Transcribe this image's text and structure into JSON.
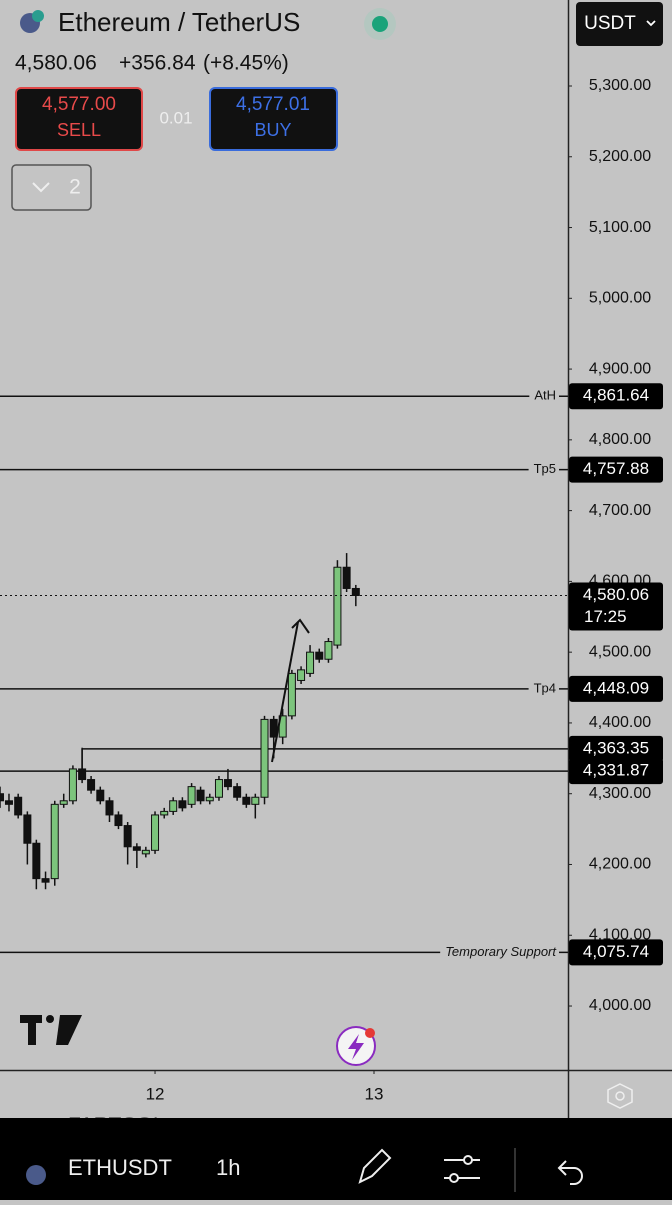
{
  "header": {
    "title": "Ethereum / TetherUS",
    "price": "4,580.06",
    "change": "+356.84",
    "change_pct": "(+8.45%)",
    "sell": {
      "price": "4,577.00",
      "label": "SELL"
    },
    "quantity": "0.01",
    "buy": {
      "price": "4,577.01",
      "label": "BUY"
    },
    "collapsed_count": "2",
    "currency": "USDT"
  },
  "chart_data": {
    "type": "candlestick",
    "x": [
      11.292,
      11.333,
      11.375,
      11.417,
      11.458,
      11.5,
      11.542,
      11.583,
      11.625,
      11.667,
      11.708,
      11.75,
      11.792,
      11.833,
      11.875,
      11.917,
      11.958,
      12.0,
      12.042,
      12.083,
      12.125,
      12.167,
      12.208,
      12.25,
      12.292,
      12.333,
      12.375,
      12.417,
      12.458,
      12.5,
      12.542,
      12.583,
      12.625,
      12.667,
      12.708,
      12.75,
      12.792,
      12.833,
      12.875,
      12.917
    ],
    "open": [
      4300,
      4290,
      4295,
      4270,
      4230,
      4180,
      4180,
      4285,
      4290,
      4335,
      4320,
      4305,
      4290,
      4270,
      4255,
      4225,
      4215,
      4220,
      4270,
      4275,
      4290,
      4285,
      4305,
      4290,
      4295,
      4320,
      4310,
      4295,
      4285,
      4295,
      4405,
      4380,
      4410,
      4460,
      4470,
      4500,
      4490,
      4510,
      4620,
      4590
    ],
    "high": [
      4310,
      4300,
      4300,
      4275,
      4235,
      4190,
      4290,
      4300,
      4340,
      4365,
      4325,
      4310,
      4295,
      4275,
      4260,
      4230,
      4225,
      4275,
      4280,
      4295,
      4295,
      4315,
      4310,
      4300,
      4325,
      4335,
      4315,
      4300,
      4300,
      4410,
      4410,
      4420,
      4475,
      4480,
      4510,
      4505,
      4520,
      4630,
      4640,
      4595
    ],
    "low": [
      4280,
      4275,
      4265,
      4200,
      4165,
      4165,
      4170,
      4280,
      4285,
      4315,
      4300,
      4285,
      4260,
      4250,
      4200,
      4195,
      4210,
      4215,
      4265,
      4270,
      4275,
      4280,
      4285,
      4285,
      4290,
      4305,
      4290,
      4280,
      4265,
      4285,
      4350,
      4370,
      4405,
      4455,
      4465,
      4485,
      4485,
      4505,
      4585,
      4565
    ],
    "close": [
      4290,
      4285,
      4270,
      4230,
      4180,
      4175,
      4285,
      4290,
      4335,
      4320,
      4305,
      4290,
      4270,
      4255,
      4225,
      4220,
      4220,
      4270,
      4275,
      4290,
      4280,
      4310,
      4290,
      4295,
      4320,
      4310,
      4295,
      4285,
      4295,
      4405,
      4380,
      4410,
      4470,
      4475,
      4500,
      4490,
      4515,
      4620,
      4590,
      4580.06
    ],
    "up_color": "#7cc47c",
    "down_color": "#111111",
    "xlim": [
      11.292,
      13.886
    ],
    "xticks": [
      12,
      13
    ],
    "ylim": [
      3909.6,
      5421.5
    ],
    "yticks": [
      {
        "value": 4000,
        "label": "4,000.00"
      },
      {
        "value": 4100,
        "label": "4,100.00"
      },
      {
        "value": 4200,
        "label": "4,200.00"
      },
      {
        "value": 4300,
        "label": "4,300.00"
      },
      {
        "value": 4400,
        "label": "4,400.00"
      },
      {
        "value": 4500,
        "label": "4,500.00"
      },
      {
        "value": 4600,
        "label": "4,600.00"
      },
      {
        "value": 4700,
        "label": "4,700.00"
      },
      {
        "value": 4800,
        "label": "4,800.00"
      },
      {
        "value": 4900,
        "label": "4,900.00"
      },
      {
        "value": 5000,
        "label": "5,000.00"
      },
      {
        "value": 5100,
        "label": "5,100.00"
      },
      {
        "value": 5200,
        "label": "5,200.00"
      },
      {
        "value": 5300,
        "label": "5,300.00"
      }
    ],
    "levels": [
      {
        "name": "AtH",
        "value": 4861.64,
        "value_label": "4,861.64"
      },
      {
        "name": "Tp5",
        "value": 4757.88,
        "value_label": "4,757.88"
      },
      {
        "name": "Tp4",
        "value": 4448.09,
        "value_label": "4,448.09"
      },
      {
        "value": 4363.35,
        "value_label": "4,363.35",
        "x_start": 11.667
      },
      {
        "value": 4331.87,
        "value_label": "4,331.87"
      },
      {
        "name": "Temporary Support",
        "value": 4075.74,
        "value_label": "4,075.74"
      }
    ],
    "last_price": {
      "value": 4580.06,
      "value_label": "4,580.06",
      "countdown": "17:25"
    },
    "grid": false
  },
  "bottom_bar": {
    "hidden_symbol": "FARTCOI",
    "symbol": "ETHUSDT",
    "interval": "1h"
  }
}
